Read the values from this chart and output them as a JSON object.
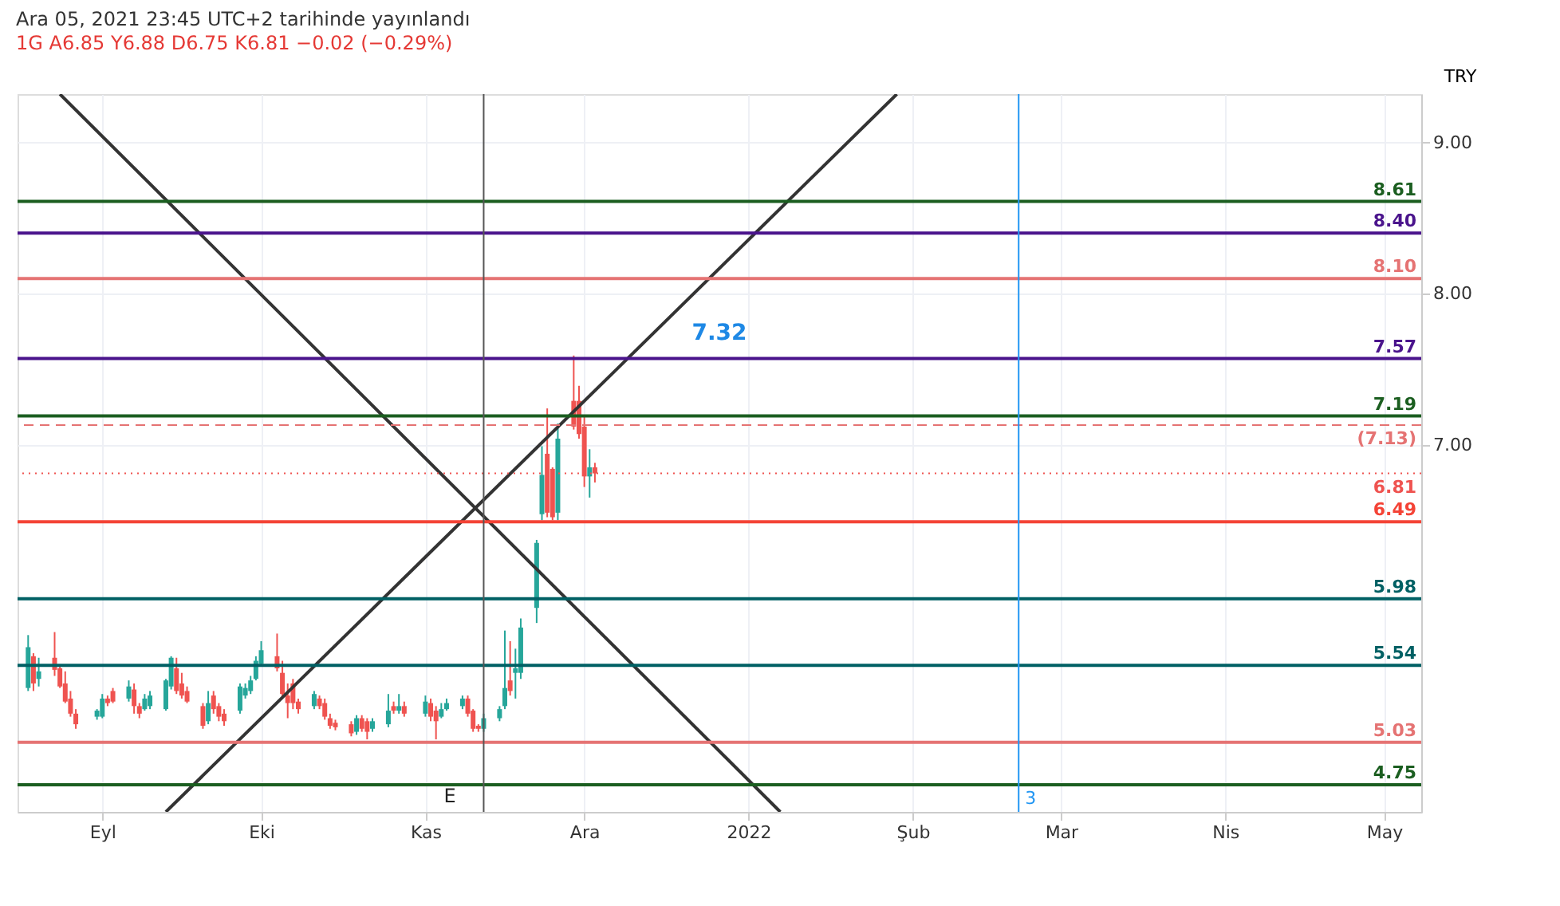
{
  "chart_data": {
    "type": "candlestick",
    "title": "Ara 05, 2021 23:45 UTC+2 tarihinde yayınlandı",
    "subtitle": "1G  A6.85 Y6.88 D6.75 K6.81 −0.02 (−0.29%)",
    "ylabel": "TRY",
    "x": [
      "2021-08-18",
      "2021-08-19",
      "2021-08-20",
      "2021-08-23",
      "2021-08-24",
      "2021-08-25",
      "2021-08-26",
      "2021-08-27",
      "2021-08-31",
      "2021-09-01",
      "2021-09-02",
      "2021-09-03",
      "2021-09-06",
      "2021-09-07",
      "2021-09-08",
      "2021-09-09",
      "2021-09-10",
      "2021-09-13",
      "2021-09-14",
      "2021-09-15",
      "2021-09-16",
      "2021-09-17",
      "2021-09-20",
      "2021-09-21",
      "2021-09-22",
      "2021-09-23",
      "2021-09-24",
      "2021-09-27",
      "2021-09-28",
      "2021-09-29",
      "2021-09-30",
      "2021-10-01",
      "2021-10-04",
      "2021-10-05",
      "2021-10-06",
      "2021-10-07",
      "2021-10-08",
      "2021-10-11",
      "2021-10-12",
      "2021-10-13",
      "2021-10-14",
      "2021-10-15",
      "2021-10-18",
      "2021-10-19",
      "2021-10-20",
      "2021-10-21",
      "2021-10-22",
      "2021-10-25",
      "2021-10-26",
      "2021-10-27",
      "2021-10-28",
      "2021-11-01",
      "2021-11-02",
      "2021-11-03",
      "2021-11-04",
      "2021-11-05",
      "2021-11-08",
      "2021-11-09",
      "2021-11-10",
      "2021-11-11",
      "2021-11-12",
      "2021-11-15",
      "2021-11-16",
      "2021-11-17",
      "2021-11-18",
      "2021-11-19",
      "2021-11-22",
      "2021-11-23",
      "2021-11-24",
      "2021-11-25",
      "2021-11-26",
      "2021-11-29",
      "2021-11-30",
      "2021-12-01",
      "2021-12-02",
      "2021-12-03"
    ],
    "ohlc": [
      [
        5.39,
        5.74,
        5.37,
        5.66
      ],
      [
        5.6,
        5.62,
        5.37,
        5.42
      ],
      [
        5.45,
        5.59,
        5.4,
        5.5
      ],
      [
        5.59,
        5.76,
        5.47,
        5.51
      ],
      [
        5.52,
        5.54,
        5.39,
        5.4
      ],
      [
        5.42,
        5.5,
        5.29,
        5.3
      ],
      [
        5.32,
        5.37,
        5.2,
        5.22
      ],
      [
        5.22,
        5.25,
        5.12,
        5.15
      ],
      [
        5.2,
        5.25,
        5.18,
        5.24
      ],
      [
        5.2,
        5.35,
        5.19,
        5.32
      ],
      [
        5.32,
        5.34,
        5.27,
        5.29
      ],
      [
        5.37,
        5.39,
        5.29,
        5.3
      ],
      [
        5.32,
        5.44,
        5.3,
        5.4
      ],
      [
        5.38,
        5.42,
        5.22,
        5.27
      ],
      [
        5.27,
        5.29,
        5.19,
        5.22
      ],
      [
        5.25,
        5.35,
        5.24,
        5.32
      ],
      [
        5.27,
        5.37,
        5.25,
        5.34
      ],
      [
        5.25,
        5.45,
        5.24,
        5.44
      ],
      [
        5.4,
        5.6,
        5.38,
        5.59
      ],
      [
        5.52,
        5.59,
        5.35,
        5.37
      ],
      [
        5.42,
        5.49,
        5.32,
        5.34
      ],
      [
        5.37,
        5.4,
        5.29,
        5.3
      ],
      [
        5.27,
        5.29,
        5.12,
        5.14
      ],
      [
        5.17,
        5.37,
        5.15,
        5.29
      ],
      [
        5.34,
        5.37,
        5.22,
        5.25
      ],
      [
        5.27,
        5.29,
        5.17,
        5.2
      ],
      [
        5.22,
        5.25,
        5.14,
        5.17
      ],
      [
        5.24,
        5.42,
        5.22,
        5.4
      ],
      [
        5.34,
        5.42,
        5.32,
        5.39
      ],
      [
        5.37,
        5.47,
        5.35,
        5.44
      ],
      [
        5.45,
        5.6,
        5.44,
        5.57
      ],
      [
        5.55,
        5.7,
        5.54,
        5.64
      ],
      [
        5.6,
        5.75,
        5.5,
        5.52
      ],
      [
        5.49,
        5.57,
        5.32,
        5.35
      ],
      [
        5.34,
        5.42,
        5.19,
        5.29
      ],
      [
        5.42,
        5.45,
        5.25,
        5.29
      ],
      [
        5.3,
        5.32,
        5.22,
        5.25
      ],
      [
        5.27,
        5.37,
        5.25,
        5.35
      ],
      [
        5.32,
        5.34,
        5.25,
        5.27
      ],
      [
        5.29,
        5.32,
        5.18,
        5.2
      ],
      [
        5.19,
        5.22,
        5.12,
        5.14
      ],
      [
        5.16,
        5.18,
        5.11,
        5.13
      ],
      [
        5.15,
        5.17,
        5.07,
        5.09
      ],
      [
        5.1,
        5.21,
        5.08,
        5.19
      ],
      [
        5.19,
        5.21,
        5.1,
        5.12
      ],
      [
        5.17,
        5.19,
        5.05,
        5.1
      ],
      [
        5.12,
        5.19,
        5.1,
        5.17
      ],
      [
        5.15,
        5.35,
        5.13,
        5.24
      ],
      [
        5.27,
        5.3,
        5.22,
        5.24
      ],
      [
        5.24,
        5.35,
        5.22,
        5.27
      ],
      [
        5.27,
        5.3,
        5.2,
        5.22
      ],
      [
        5.22,
        5.34,
        5.2,
        5.3
      ],
      [
        5.29,
        5.32,
        5.17,
        5.2
      ],
      [
        5.24,
        5.27,
        5.05,
        5.17
      ],
      [
        5.2,
        5.29,
        5.19,
        5.25
      ],
      [
        5.25,
        5.32,
        5.24,
        5.29
      ],
      [
        5.27,
        5.34,
        5.25,
        5.32
      ],
      [
        5.32,
        5.34,
        5.2,
        5.22
      ],
      [
        5.24,
        5.25,
        5.1,
        5.12
      ],
      [
        5.14,
        5.15,
        5.1,
        5.12
      ],
      [
        5.12,
        5.22,
        5.1,
        5.19
      ],
      [
        5.19,
        5.27,
        5.17,
        5.25
      ],
      [
        5.27,
        5.77,
        5.25,
        5.39
      ],
      [
        5.44,
        5.7,
        5.34,
        5.37
      ],
      [
        5.49,
        5.65,
        5.32,
        5.52
      ],
      [
        5.49,
        5.85,
        5.45,
        5.79
      ],
      [
        5.92,
        6.37,
        5.82,
        6.35
      ],
      [
        6.54,
        6.99,
        6.5,
        6.8
      ],
      [
        6.94,
        7.24,
        6.52,
        6.55
      ],
      [
        6.84,
        6.85,
        6.5,
        6.52
      ],
      [
        6.55,
        7.14,
        6.5,
        7.04
      ],
      [
        7.29,
        7.59,
        7.1,
        7.12
      ],
      [
        7.29,
        7.39,
        7.04,
        7.07
      ],
      [
        7.12,
        7.19,
        6.72,
        6.79
      ],
      [
        6.79,
        6.97,
        6.65,
        6.85
      ],
      [
        6.85,
        6.88,
        6.75,
        6.81
      ]
    ],
    "colors": [
      "#26a69a",
      "#ef5350",
      "#26a69a",
      "#ef5350",
      "#ef5350",
      "#ef5350",
      "#ef5350",
      "#ef5350",
      "#26a69a",
      "#26a69a",
      "#ef5350",
      "#ef5350",
      "#26a69a",
      "#ef5350",
      "#ef5350",
      "#26a69a",
      "#26a69a",
      "#26a69a",
      "#26a69a",
      "#ef5350",
      "#ef5350",
      "#ef5350",
      "#ef5350",
      "#26a69a",
      "#ef5350",
      "#ef5350",
      "#ef5350",
      "#26a69a",
      "#26a69a",
      "#26a69a",
      "#26a69a",
      "#26a69a",
      "#ef5350",
      "#ef5350",
      "#ef5350",
      "#ef5350",
      "#ef5350",
      "#26a69a",
      "#ef5350",
      "#ef5350",
      "#ef5350",
      "#ef5350",
      "#ef5350",
      "#26a69a",
      "#ef5350",
      "#ef5350",
      "#26a69a",
      "#26a69a",
      "#ef5350",
      "#26a69a",
      "#ef5350",
      "#26a69a",
      "#ef5350",
      "#ef5350",
      "#26a69a",
      "#26a69a",
      "#26a69a",
      "#ef5350",
      "#ef5350",
      "#ef5350",
      "#26a69a",
      "#26a69a",
      "#26a69a",
      "#ef5350",
      "#26a69a",
      "#26a69a",
      "#26a69a",
      "#26a69a",
      "#ef5350",
      "#ef5350",
      "#26a69a",
      "#ef5350",
      "#ef5350",
      "#ef5350",
      "#26a69a",
      "#ef5350"
    ],
    "series": [
      {
        "type": "line",
        "color": "#333333",
        "x": [
          "2021-08-24",
          "2022-01-07"
        ],
        "values": [
          9.32,
          4.57
        ]
      },
      {
        "type": "line",
        "color": "#333333",
        "x": [
          "2021-09-13",
          "2022-01-29"
        ],
        "values": [
          4.57,
          9.32
        ]
      }
    ],
    "ref_lines": [
      {
        "axis": "y",
        "value": 8.61,
        "label": "8.61",
        "color": "#1b5e20"
      },
      {
        "axis": "y",
        "value": 8.4,
        "label": "8.40",
        "color": "#4a148c"
      },
      {
        "axis": "y",
        "value": 8.1,
        "label": "8.10",
        "color": "#e57373"
      },
      {
        "axis": "y",
        "value": 7.57,
        "label": "7.57",
        "color": "#4a148c"
      },
      {
        "axis": "y",
        "value": 7.19,
        "label": "7.19",
        "color": "#1b5e20"
      },
      {
        "axis": "y",
        "value": 7.13,
        "label": "(7.13)",
        "color": "#e57373",
        "line_style": "dashed"
      },
      {
        "axis": "y",
        "value": 6.81,
        "label": "6.81",
        "color": "#ef5350",
        "line_style": "dotted"
      },
      {
        "axis": "y",
        "value": 6.49,
        "label": "6.49",
        "color": "#f44336"
      },
      {
        "axis": "y",
        "value": 5.98,
        "label": "5.98",
        "color": "#006064"
      },
      {
        "axis": "y",
        "value": 5.54,
        "label": "5.54",
        "color": "#006064"
      },
      {
        "axis": "y",
        "value": 5.03,
        "label": "5.03",
        "color": "#e57373"
      },
      {
        "axis": "y",
        "value": 4.75,
        "label": "4.75",
        "color": "#1b5e20"
      },
      {
        "axis": "x",
        "value": "2021-11-12",
        "color": "#555555"
      },
      {
        "axis": "x",
        "value": "2022-02-21",
        "label": "3",
        "color": "#2196f3"
      }
    ],
    "annotations": [
      "7.32",
      "E"
    ],
    "xlim": [
      "2021-08-16",
      "2022-05-08"
    ],
    "ylim": [
      4.57,
      9.32
    ],
    "xticks": [
      {
        "value": "2021-09-01",
        "label": "Eyl"
      },
      {
        "value": "2021-10-01",
        "label": "Eki"
      },
      {
        "value": "2021-11-01",
        "label": "Kas"
      },
      {
        "value": "2021-12-01",
        "label": "Ara"
      },
      {
        "value": "2022-01-01",
        "label": "2022"
      },
      {
        "value": "2022-02-01",
        "label": "Şub"
      },
      {
        "value": "2022-03-01",
        "label": "Mar"
      },
      {
        "value": "2022-04-01",
        "label": "Nis"
      },
      {
        "value": "2022-05-01",
        "label": "May"
      }
    ],
    "yticks": [
      {
        "value": 7,
        "label": "7.00"
      },
      {
        "value": 8,
        "label": "8.00"
      },
      {
        "value": 9,
        "label": "9.00"
      }
    ],
    "grid": true
  }
}
